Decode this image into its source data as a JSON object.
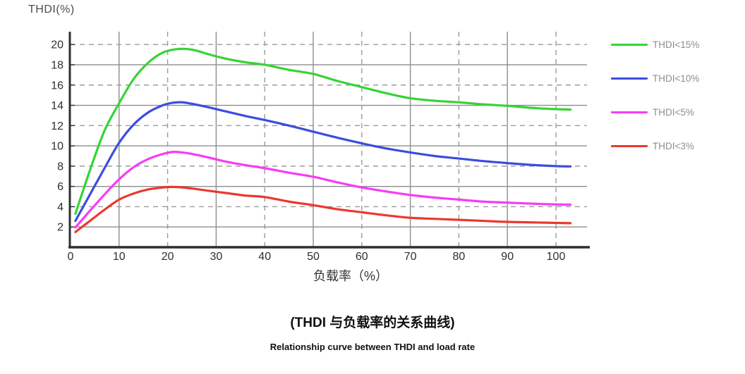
{
  "colors": {
    "background": "#ffffff",
    "grid_solid": "#8d8d8d",
    "grid_dashed": "#9b9b9b",
    "axis": "#2f2f2f",
    "tick_label": "#2f2f2f",
    "axis_title": "#4c4c4c",
    "x_axis_label": "#333333",
    "legend_text": "#8e8e8e",
    "caption": "#101010"
  },
  "chart_data": {
    "type": "line",
    "y_axis_title": "THDI(%)",
    "x_axis_label": "负载率（%）",
    "x_ticks": [
      0,
      10,
      20,
      30,
      40,
      50,
      60,
      70,
      80,
      90,
      100
    ],
    "y_ticks": [
      2,
      4,
      6,
      8,
      10,
      12,
      14,
      16,
      18,
      20
    ],
    "xlim": [
      0,
      107
    ],
    "ylim": [
      0,
      21.3
    ],
    "grid": {
      "solid_x": [
        10,
        30,
        50,
        70,
        90
      ],
      "dashed_x": [
        20,
        40,
        60,
        80,
        100
      ],
      "solid_y": [
        2,
        6,
        10,
        14,
        18
      ],
      "dashed_y": [
        4,
        8,
        12,
        16,
        20
      ]
    },
    "legend_position": "right",
    "series": [
      {
        "name": "THDI<15%",
        "color": "#35d435",
        "points": [
          [
            1,
            3.3
          ],
          [
            4,
            7.6
          ],
          [
            7,
            11.5
          ],
          [
            10,
            14.2
          ],
          [
            13,
            16.6
          ],
          [
            16,
            18.2
          ],
          [
            19,
            19.2
          ],
          [
            22,
            19.55
          ],
          [
            25,
            19.5
          ],
          [
            28,
            19.1
          ],
          [
            32,
            18.6
          ],
          [
            36,
            18.25
          ],
          [
            40,
            18.0
          ],
          [
            45,
            17.5
          ],
          [
            50,
            17.1
          ],
          [
            55,
            16.4
          ],
          [
            60,
            15.8
          ],
          [
            65,
            15.2
          ],
          [
            70,
            14.7
          ],
          [
            75,
            14.45
          ],
          [
            80,
            14.3
          ],
          [
            85,
            14.1
          ],
          [
            90,
            13.95
          ],
          [
            95,
            13.75
          ],
          [
            100,
            13.62
          ],
          [
            103,
            13.58
          ]
        ]
      },
      {
        "name": "THDI<10%",
        "color": "#3c4ce0",
        "points": [
          [
            1,
            2.6
          ],
          [
            4,
            5.2
          ],
          [
            7,
            7.8
          ],
          [
            10,
            10.3
          ],
          [
            13,
            12.1
          ],
          [
            16,
            13.3
          ],
          [
            19,
            14.0
          ],
          [
            21,
            14.25
          ],
          [
            23,
            14.3
          ],
          [
            25,
            14.15
          ],
          [
            28,
            13.85
          ],
          [
            32,
            13.4
          ],
          [
            36,
            12.95
          ],
          [
            40,
            12.55
          ],
          [
            45,
            12.0
          ],
          [
            50,
            11.4
          ],
          [
            55,
            10.8
          ],
          [
            60,
            10.25
          ],
          [
            65,
            9.75
          ],
          [
            70,
            9.35
          ],
          [
            75,
            9.0
          ],
          [
            80,
            8.75
          ],
          [
            85,
            8.5
          ],
          [
            90,
            8.3
          ],
          [
            95,
            8.12
          ],
          [
            100,
            8.0
          ],
          [
            103,
            7.97
          ]
        ]
      },
      {
        "name": "THDI<5%",
        "color": "#f73bf7",
        "points": [
          [
            1,
            1.95
          ],
          [
            4,
            3.6
          ],
          [
            7,
            5.2
          ],
          [
            10,
            6.7
          ],
          [
            13,
            7.9
          ],
          [
            16,
            8.7
          ],
          [
            19,
            9.2
          ],
          [
            21,
            9.4
          ],
          [
            23,
            9.35
          ],
          [
            25,
            9.2
          ],
          [
            28,
            8.9
          ],
          [
            32,
            8.45
          ],
          [
            36,
            8.1
          ],
          [
            40,
            7.8
          ],
          [
            45,
            7.35
          ],
          [
            50,
            6.95
          ],
          [
            55,
            6.4
          ],
          [
            60,
            5.9
          ],
          [
            65,
            5.5
          ],
          [
            70,
            5.15
          ],
          [
            75,
            4.9
          ],
          [
            80,
            4.7
          ],
          [
            85,
            4.5
          ],
          [
            90,
            4.4
          ],
          [
            95,
            4.3
          ],
          [
            100,
            4.22
          ],
          [
            103,
            4.2
          ]
        ]
      },
      {
        "name": "THDI<3%",
        "color": "#ea392e",
        "points": [
          [
            1,
            1.5
          ],
          [
            4,
            2.6
          ],
          [
            7,
            3.7
          ],
          [
            10,
            4.7
          ],
          [
            13,
            5.3
          ],
          [
            16,
            5.7
          ],
          [
            19,
            5.9
          ],
          [
            21,
            5.95
          ],
          [
            23,
            5.9
          ],
          [
            25,
            5.8
          ],
          [
            28,
            5.6
          ],
          [
            32,
            5.35
          ],
          [
            36,
            5.1
          ],
          [
            40,
            4.95
          ],
          [
            45,
            4.5
          ],
          [
            50,
            4.15
          ],
          [
            55,
            3.75
          ],
          [
            60,
            3.45
          ],
          [
            65,
            3.15
          ],
          [
            70,
            2.9
          ],
          [
            75,
            2.8
          ],
          [
            80,
            2.7
          ],
          [
            85,
            2.6
          ],
          [
            90,
            2.5
          ],
          [
            95,
            2.45
          ],
          [
            100,
            2.4
          ],
          [
            103,
            2.37
          ]
        ]
      }
    ]
  },
  "caption": {
    "zh": "(THDI 与负载率的关系曲线)",
    "en": "Relationship curve between THDI and load rate"
  }
}
